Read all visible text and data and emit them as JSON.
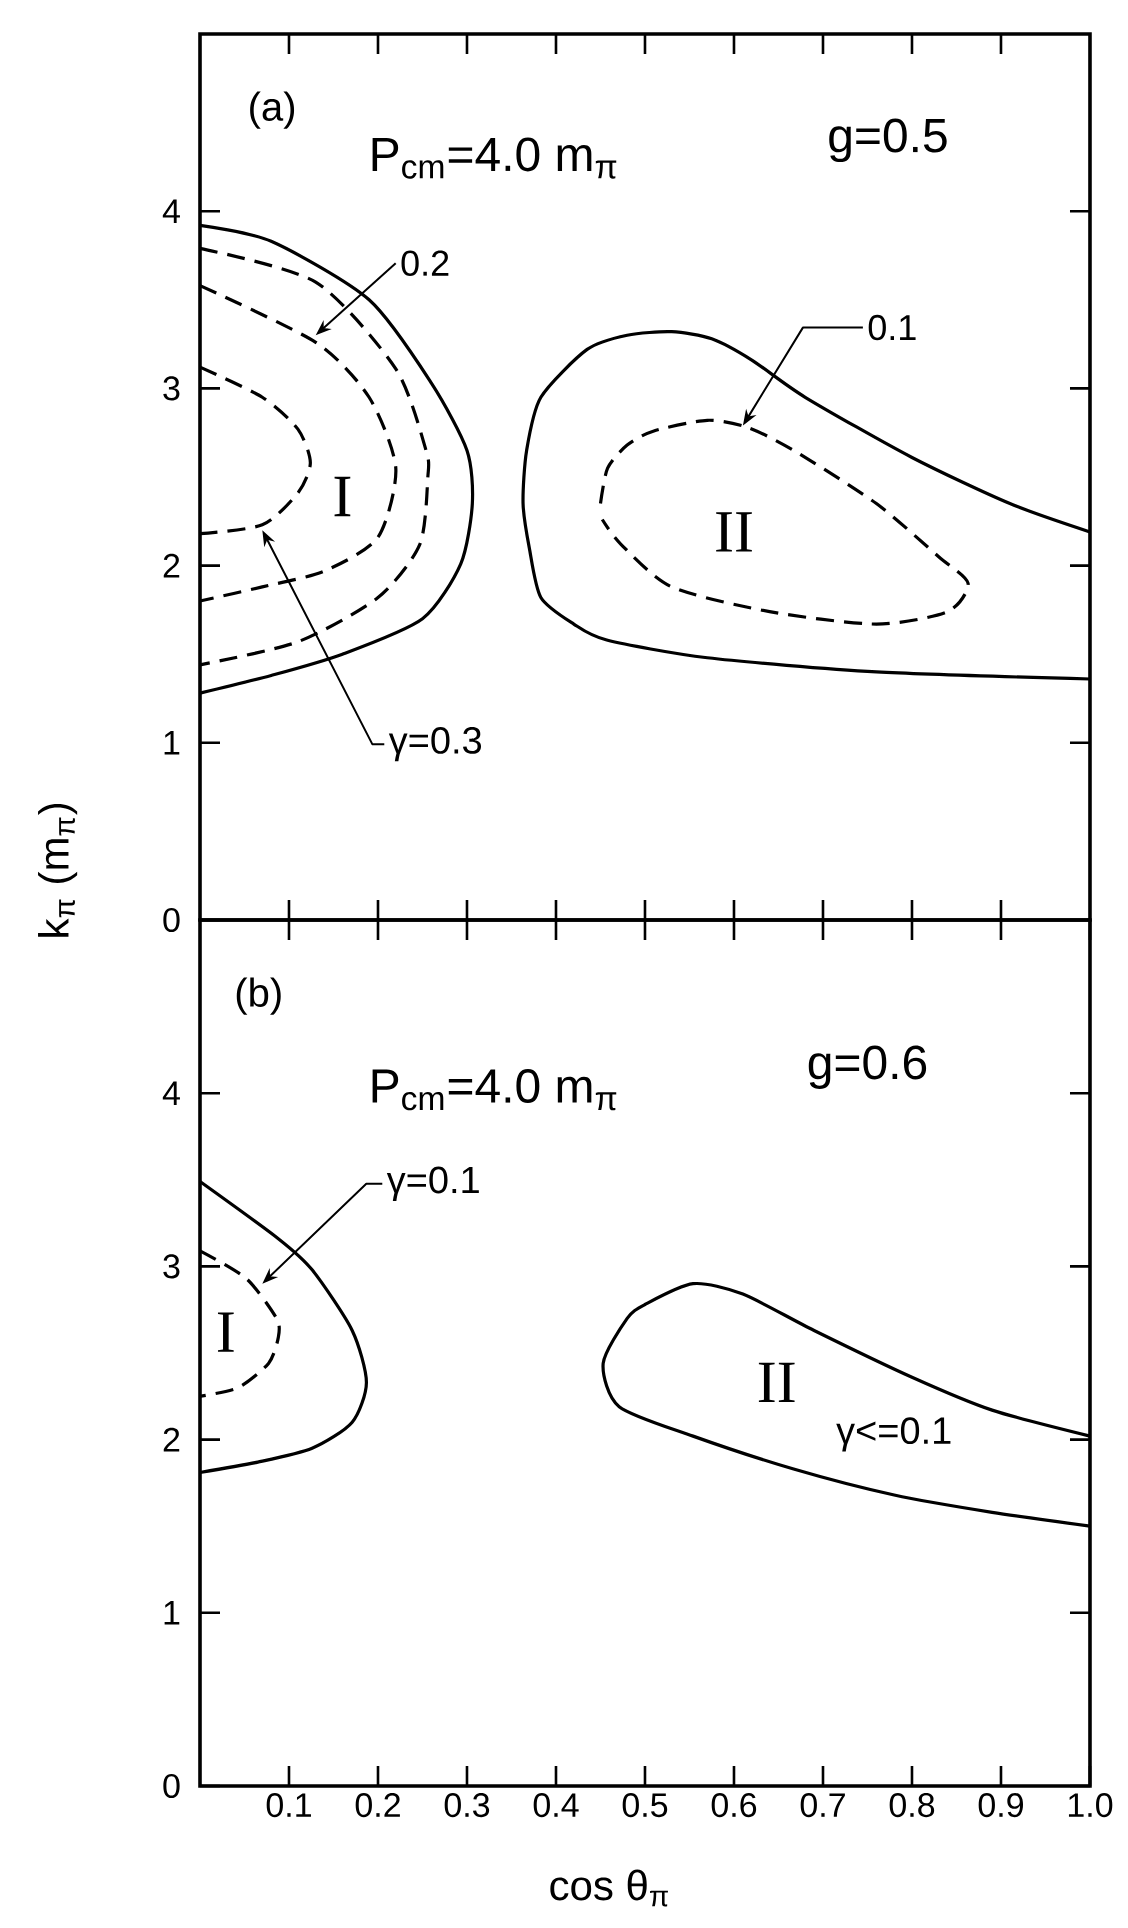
{
  "chart_data": [
    {
      "type": "line",
      "ylabel": "k$_{π}$ (m$_{π}$)",
      "xlim": [
        0,
        1
      ],
      "ylim": [
        0,
        5
      ],
      "xticks": [
        0.1,
        0.2,
        0.3,
        0.4,
        0.5,
        0.6,
        0.7,
        0.8,
        0.9
      ],
      "yticks": [
        0,
        1,
        2,
        3,
        4
      ],
      "tick_labels": "y",
      "annotations": [
        "(a)",
        "P$_{cm}$=4.0 m$_{π}$",
        "g=0.5",
        "I",
        "II",
        {
          "text": "0.2",
          "x": 0.13,
          "y": 3.3
        },
        {
          "text": "γ=0.3",
          "x": 0.07,
          "y": 2.2
        },
        {
          "text": "0.1",
          "x": 0.61,
          "y": 2.79
        }
      ],
      "series": [
        {
          "color": "#000000",
          "line_style": "solid",
          "x": [
            0,
            0.08,
            0.19,
            0.26,
            0.3,
            0.306,
            0.293,
            0.25,
            0.16,
            0.08,
            0
          ],
          "values": [
            3.92,
            3.83,
            3.5,
            3.03,
            2.65,
            2.35,
            2.01,
            1.7,
            1.5,
            1.38,
            1.28
          ]
        },
        {
          "color": "#000000",
          "line_style": "dashed",
          "x": [
            0,
            0.13,
            0.22,
            0.254,
            0.256,
            0.247,
            0.2,
            0.11,
            0
          ],
          "values": [
            3.79,
            3.6,
            3.11,
            2.65,
            2.5,
            2.12,
            1.82,
            1.57,
            1.44
          ]
        },
        {
          "color": "#000000",
          "line_style": "dashed",
          "x": [
            0,
            0.13,
            0.19,
            0.22,
            0.2,
            0.14,
            0.07,
            0
          ],
          "values": [
            3.58,
            3.26,
            2.95,
            2.55,
            2.16,
            1.97,
            1.88,
            1.8
          ]
        },
        {
          "color": "#000000",
          "line_style": "dashed",
          "x": [
            0,
            0.07,
            0.11,
            0.124,
            0.11,
            0.07,
            0
          ],
          "values": [
            3.12,
            2.95,
            2.77,
            2.58,
            2.41,
            2.23,
            2.18
          ]
        },
        {
          "color": "#000000",
          "line_style": "solid",
          "x": [
            1,
            0.91,
            0.8,
            0.68,
            0.62,
            0.575,
            0.53,
            0.48,
            0.435,
            0.383,
            0.367,
            0.363,
            0.37,
            0.383,
            0.42,
            0.457,
            0.57,
            0.76,
            1
          ],
          "values": [
            2.19,
            2.35,
            2.61,
            2.95,
            3.16,
            3.28,
            3.32,
            3.3,
            3.22,
            2.95,
            2.65,
            2.35,
            2.1,
            1.82,
            1.67,
            1.58,
            1.48,
            1.4,
            1.36
          ]
        },
        {
          "color": "#000000",
          "line_style": "dashed",
          "x": [
            0.45,
            0.458,
            0.48,
            0.51,
            0.57,
            0.615,
            0.667,
            0.76,
            0.83,
            0.863,
            0.84,
            0.76,
            0.64,
            0.53,
            0.473,
            0.452
          ],
          "values": [
            2.35,
            2.55,
            2.68,
            2.76,
            2.82,
            2.78,
            2.65,
            2.35,
            2.05,
            1.9,
            1.74,
            1.67,
            1.74,
            1.88,
            2.12,
            2.26
          ]
        }
      ]
    },
    {
      "type": "line",
      "xlabel": "cos θ$_{π}$",
      "xlim": [
        0,
        1
      ],
      "ylim": [
        0,
        5
      ],
      "xticks": [
        0.1,
        0.2,
        0.3,
        0.4,
        0.5,
        0.6,
        0.7,
        0.8,
        0.9,
        {
          "value": 1,
          "label": "1.0"
        }
      ],
      "yticks": [
        0,
        1,
        2,
        3,
        4
      ],
      "annotations": [
        "(b)",
        "P$_{cm}$=4.0 m$_{π}$",
        "g=0.6",
        "I",
        "II",
        "γ<=0.1",
        {
          "text": "γ=0.1",
          "x": 0.07,
          "y": 2.9
        }
      ],
      "series": [
        {
          "color": "#000000",
          "line_style": "solid",
          "x": [
            0,
            0.088,
            0.126,
            0.171,
            0.187,
            0.171,
            0.126,
            0.065,
            0
          ],
          "values": [
            3.49,
            3.16,
            2.98,
            2.63,
            2.33,
            2.1,
            1.95,
            1.87,
            1.81
          ]
        },
        {
          "color": "#000000",
          "line_style": "dashed",
          "x": [
            0,
            0.052,
            0.086,
            0.088,
            0.077,
            0.043,
            0
          ],
          "values": [
            3.09,
            2.93,
            2.7,
            2.59,
            2.44,
            2.3,
            2.25
          ]
        },
        {
          "color": "#000000",
          "line_style": "solid",
          "x": [
            1,
            0.89,
            0.8,
            0.69,
            0.61,
            0.554,
            0.5,
            0.48,
            0.453,
            0.471,
            0.554,
            0.667,
            0.78,
            0.89,
            1
          ],
          "values": [
            2.02,
            2.17,
            2.36,
            2.63,
            2.84,
            2.9,
            2.78,
            2.7,
            2.44,
            2.19,
            2.02,
            1.83,
            1.68,
            1.58,
            1.5
          ]
        }
      ]
    }
  ]
}
